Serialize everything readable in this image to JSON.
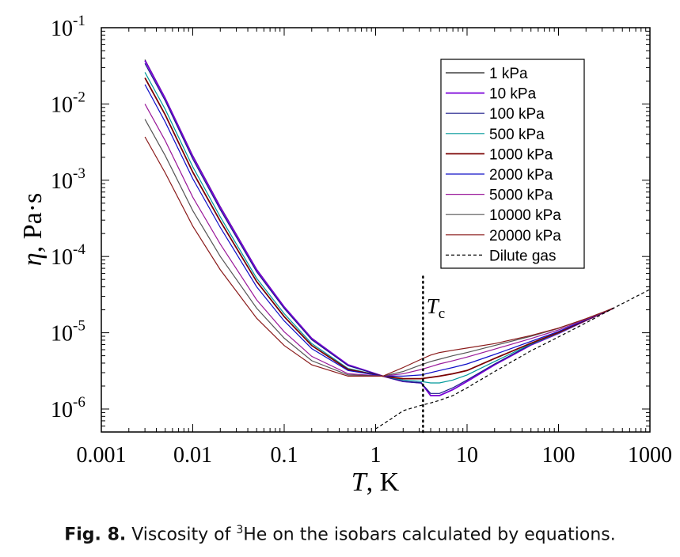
{
  "chart_data": {
    "type": "line",
    "title": "",
    "xlabel": {
      "symbol": "T",
      "unit": ", K"
    },
    "ylabel": {
      "symbol": "η",
      "unit": ", Pa·s"
    },
    "xscale": "log",
    "yscale": "log",
    "xlim": [
      0.001,
      1000
    ],
    "ylim": [
      5e-07,
      0.1
    ],
    "x_ticks": [
      {
        "value": 0.001,
        "label": "0.001"
      },
      {
        "value": 0.01,
        "label": "0.01"
      },
      {
        "value": 0.1,
        "label": "0.1"
      },
      {
        "value": 1,
        "label": "1"
      },
      {
        "value": 10,
        "label": "10"
      },
      {
        "value": 100,
        "label": "100"
      },
      {
        "value": 1000,
        "label": "1000"
      }
    ],
    "y_ticks": [
      {
        "value": 1e-06,
        "base": "10",
        "exp": "-6"
      },
      {
        "value": 1e-05,
        "base": "10",
        "exp": "-5"
      },
      {
        "value": 0.0001,
        "base": "10",
        "exp": "-4"
      },
      {
        "value": 0.001,
        "base": "10",
        "exp": "-3"
      },
      {
        "value": 0.01,
        "base": "10",
        "exp": "-2"
      },
      {
        "value": 0.1,
        "base": "10",
        "exp": "-1"
      }
    ],
    "grid": false,
    "legend_position": "top-right",
    "series": [
      {
        "name": "1 kPa",
        "color": "#1a1a1a",
        "dash": "solid",
        "points": [
          [
            0.003,
            0.038
          ],
          [
            0.005,
            0.012
          ],
          [
            0.01,
            0.0021
          ],
          [
            0.02,
            0.00045
          ],
          [
            0.05,
            6.8e-05
          ],
          [
            0.1,
            2.2e-05
          ],
          [
            0.2,
            8.5e-06
          ],
          [
            0.5,
            3.8e-06
          ],
          [
            1.2,
            2.7e-06
          ],
          [
            2,
            2.3e-06
          ],
          [
            3.15,
            2.2e-06
          ],
          [
            4,
            1.5e-06
          ],
          [
            5,
            1.5e-06
          ],
          [
            7,
            1.8e-06
          ],
          [
            10,
            2.3e-06
          ],
          [
            20,
            3.8e-06
          ],
          [
            50,
            6.9e-06
          ],
          [
            100,
            9.8e-06
          ],
          [
            200,
            1.45e-05
          ],
          [
            400,
            2.1e-05
          ]
        ]
      },
      {
        "name": "10 kPa",
        "color": "#7a00d9",
        "dash": "solid",
        "points": [
          [
            0.003,
            0.037
          ],
          [
            0.005,
            0.0118
          ],
          [
            0.01,
            0.00205
          ],
          [
            0.02,
            0.00044
          ],
          [
            0.05,
            6.7e-05
          ],
          [
            0.1,
            2.18e-05
          ],
          [
            0.2,
            8.4e-06
          ],
          [
            0.5,
            3.8e-06
          ],
          [
            1.2,
            2.7e-06
          ],
          [
            2,
            2.3e-06
          ],
          [
            3.15,
            2.2e-06
          ],
          [
            4,
            1.5e-06
          ],
          [
            5,
            1.5e-06
          ],
          [
            7,
            1.8e-06
          ],
          [
            10,
            2.3e-06
          ],
          [
            20,
            3.8e-06
          ],
          [
            50,
            6.9e-06
          ],
          [
            100,
            9.8e-06
          ],
          [
            200,
            1.45e-05
          ],
          [
            400,
            2.1e-05
          ]
        ]
      },
      {
        "name": "100 kPa",
        "color": "#1c1c8a",
        "dash": "solid",
        "points": [
          [
            0.003,
            0.034
          ],
          [
            0.005,
            0.011
          ],
          [
            0.01,
            0.0019
          ],
          [
            0.02,
            0.00041
          ],
          [
            0.05,
            6.3e-05
          ],
          [
            0.1,
            2.08e-05
          ],
          [
            0.2,
            8.1e-06
          ],
          [
            0.5,
            3.7e-06
          ],
          [
            1.2,
            2.7e-06
          ],
          [
            2,
            2.3e-06
          ],
          [
            3.15,
            2.2e-06
          ],
          [
            4,
            1.6e-06
          ],
          [
            5,
            1.6e-06
          ],
          [
            7,
            1.9e-06
          ],
          [
            10,
            2.4e-06
          ],
          [
            20,
            3.9e-06
          ],
          [
            50,
            7e-06
          ],
          [
            100,
            9.9e-06
          ],
          [
            200,
            1.46e-05
          ],
          [
            400,
            2.1e-05
          ]
        ]
      },
      {
        "name": "500 kPa",
        "color": "#00999a",
        "dash": "solid",
        "points": [
          [
            0.003,
            0.026
          ],
          [
            0.005,
            0.0085
          ],
          [
            0.01,
            0.0015
          ],
          [
            0.02,
            0.00033
          ],
          [
            0.05,
            5.2e-05
          ],
          [
            0.1,
            1.78e-05
          ],
          [
            0.2,
            7.2e-06
          ],
          [
            0.5,
            3.4e-06
          ],
          [
            1.2,
            2.7e-06
          ],
          [
            2,
            2.4e-06
          ],
          [
            3.15,
            2.3e-06
          ],
          [
            4,
            2.2e-06
          ],
          [
            5,
            2.2e-06
          ],
          [
            7,
            2.4e-06
          ],
          [
            10,
            2.8e-06
          ],
          [
            20,
            4.2e-06
          ],
          [
            50,
            7.1e-06
          ],
          [
            100,
            9.9e-06
          ],
          [
            200,
            1.45e-05
          ],
          [
            400,
            2.1e-05
          ]
        ]
      },
      {
        "name": "1000 kPa",
        "color": "#7a0000",
        "dash": "solid",
        "points": [
          [
            0.003,
            0.022
          ],
          [
            0.005,
            0.0072
          ],
          [
            0.01,
            0.00128
          ],
          [
            0.02,
            0.00029
          ],
          [
            0.05,
            4.7e-05
          ],
          [
            0.1,
            1.63e-05
          ],
          [
            0.2,
            6.8e-06
          ],
          [
            0.5,
            3.3e-06
          ],
          [
            1.2,
            2.7e-06
          ],
          [
            2,
            2.5e-06
          ],
          [
            3.15,
            2.5e-06
          ],
          [
            4,
            2.6e-06
          ],
          [
            5,
            2.7e-06
          ],
          [
            7,
            2.9e-06
          ],
          [
            10,
            3.2e-06
          ],
          [
            20,
            4.6e-06
          ],
          [
            50,
            7.3e-06
          ],
          [
            100,
            1.01e-05
          ],
          [
            200,
            1.46e-05
          ],
          [
            400,
            2.1e-05
          ]
        ]
      },
      {
        "name": "2000 kPa",
        "color": "#1010c8",
        "dash": "solid",
        "points": [
          [
            0.003,
            0.018
          ],
          [
            0.005,
            0.0058
          ],
          [
            0.01,
            0.00105
          ],
          [
            0.02,
            0.00024
          ],
          [
            0.05,
            4e-05
          ],
          [
            0.1,
            1.43e-05
          ],
          [
            0.2,
            6.2e-06
          ],
          [
            0.5,
            3.2e-06
          ],
          [
            1.2,
            2.7e-06
          ],
          [
            2,
            2.7e-06
          ],
          [
            3.15,
            2.8e-06
          ],
          [
            4,
            3e-06
          ],
          [
            5,
            3.2e-06
          ],
          [
            7,
            3.5e-06
          ],
          [
            10,
            3.9e-06
          ],
          [
            20,
            5.2e-06
          ],
          [
            50,
            7.7e-06
          ],
          [
            100,
            1.04e-05
          ],
          [
            200,
            1.48e-05
          ],
          [
            400,
            2.1e-05
          ]
        ]
      },
      {
        "name": "5000 kPa",
        "color": "#9a1a9a",
        "dash": "solid",
        "points": [
          [
            0.003,
            0.01
          ],
          [
            0.005,
            0.0033
          ],
          [
            0.01,
            0.0006
          ],
          [
            0.02,
            0.000145
          ],
          [
            0.05,
            2.7e-05
          ],
          [
            0.1,
            1.03e-05
          ],
          [
            0.2,
            4.9e-06
          ],
          [
            0.5,
            2.9e-06
          ],
          [
            1.2,
            2.7e-06
          ],
          [
            2,
            2.9e-06
          ],
          [
            3.15,
            3.3e-06
          ],
          [
            4,
            3.6e-06
          ],
          [
            5,
            3.9e-06
          ],
          [
            7,
            4.3e-06
          ],
          [
            10,
            4.8e-06
          ],
          [
            20,
            6.1e-06
          ],
          [
            50,
            8.4e-06
          ],
          [
            100,
            1.09e-05
          ],
          [
            200,
            1.5e-05
          ],
          [
            400,
            2.1e-05
          ]
        ]
      },
      {
        "name": "10000 kPa",
        "color": "#555555",
        "dash": "solid",
        "points": [
          [
            0.003,
            0.0063
          ],
          [
            0.005,
            0.0021
          ],
          [
            0.01,
            0.0004
          ],
          [
            0.02,
            0.0001
          ],
          [
            0.05,
            2.1e-05
          ],
          [
            0.1,
            8.5e-06
          ],
          [
            0.2,
            4.3e-06
          ],
          [
            0.5,
            2.8e-06
          ],
          [
            1.2,
            2.7e-06
          ],
          [
            2,
            3.1e-06
          ],
          [
            3.15,
            3.8e-06
          ],
          [
            4,
            4.2e-06
          ],
          [
            5,
            4.5e-06
          ],
          [
            7,
            5e-06
          ],
          [
            10,
            5.5e-06
          ],
          [
            20,
            6.8e-06
          ],
          [
            50,
            9e-06
          ],
          [
            100,
            1.14e-05
          ],
          [
            200,
            1.53e-05
          ],
          [
            400,
            2.1e-05
          ]
        ]
      },
      {
        "name": "20000 kPa",
        "color": "#8a1a1a",
        "dash": "solid",
        "points": [
          [
            0.003,
            0.0037
          ],
          [
            0.005,
            0.00125
          ],
          [
            0.01,
            0.00025
          ],
          [
            0.02,
            6.7e-05
          ],
          [
            0.05,
            1.55e-05
          ],
          [
            0.1,
            6.8e-06
          ],
          [
            0.2,
            3.8e-06
          ],
          [
            0.5,
            2.7e-06
          ],
          [
            1.2,
            2.7e-06
          ],
          [
            2,
            3.5e-06
          ],
          [
            3.15,
            4.5e-06
          ],
          [
            4,
            5.1e-06
          ],
          [
            5,
            5.5e-06
          ],
          [
            7,
            5.9e-06
          ],
          [
            10,
            6.3e-06
          ],
          [
            20,
            7.2e-06
          ],
          [
            50,
            9.2e-06
          ],
          [
            100,
            1.15e-05
          ],
          [
            200,
            1.53e-05
          ],
          [
            400,
            2.1e-05
          ]
        ]
      },
      {
        "name": "Dilute gas",
        "color": "#000000",
        "dash": "dashed",
        "points": [
          [
            1,
            5.5e-07
          ],
          [
            1.5,
            7.5e-07
          ],
          [
            2,
            9.5e-07
          ],
          [
            3,
            1.1e-06
          ],
          [
            4,
            1.2e-06
          ],
          [
            5,
            1.3e-06
          ],
          [
            7,
            1.5e-06
          ],
          [
            10,
            1.9e-06
          ],
          [
            20,
            3.1e-06
          ],
          [
            50,
            5.8e-06
          ],
          [
            100,
            8.8e-06
          ],
          [
            200,
            1.35e-05
          ],
          [
            400,
            2.1e-05
          ],
          [
            1000,
            3.7e-05
          ]
        ]
      }
    ],
    "annotations": [
      {
        "type": "vline",
        "x": 3.3,
        "y_from": 5e-07,
        "y_to": 6e-05,
        "style": "dotted"
      },
      {
        "type": "text",
        "main": "T",
        "sub": "c",
        "x": 3.6,
        "y": 1.8e-05
      }
    ]
  },
  "caption": {
    "label": "Fig. 8.",
    "text_before": " Viscosity of ",
    "sup": "3",
    "text_after": "He on the isobars calculated by equations."
  }
}
